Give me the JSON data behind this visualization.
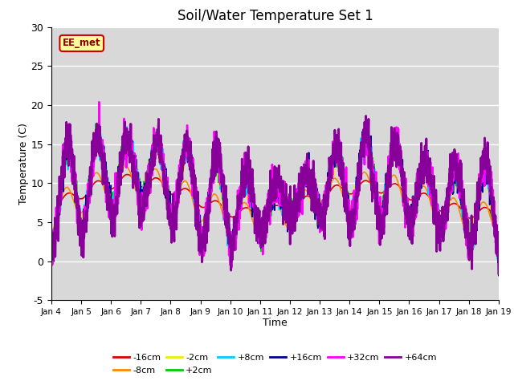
{
  "title": "Soil/Water Temperature Set 1",
  "xlabel": "Time",
  "ylabel": "Temperature (C)",
  "ylim": [
    -5,
    30
  ],
  "annotation_text": "EE_met",
  "plot_bg_color": "#d8d8d8",
  "fig_bg_color": "#ffffff",
  "series_labels": [
    "-16cm",
    "-8cm",
    "-2cm",
    "+2cm",
    "+8cm",
    "+16cm",
    "+32cm",
    "+64cm"
  ],
  "series_colors": [
    "#dd0000",
    "#ff8800",
    "#eeee00",
    "#00cc00",
    "#00ccff",
    "#000099",
    "#ff00ff",
    "#880099"
  ],
  "series_lw": [
    1.2,
    1.2,
    1.2,
    1.2,
    1.2,
    1.2,
    1.8,
    2.0
  ],
  "xtick_labels": [
    "Jan 4",
    "Jan 5",
    "Jan 6",
    "Jan 7",
    "Jan 8",
    "Jan 9",
    "Jan 10",
    "Jan 11",
    "Jan 12",
    "Jan 13",
    "Jan 14",
    "Jan 15",
    "Jan 16",
    "Jan 17",
    "Jan 18",
    "Jan 19"
  ],
  "ytick_vals": [
    -5,
    0,
    5,
    10,
    15,
    20,
    25,
    30
  ],
  "num_points": 2000,
  "time_days": 15,
  "legend_ncol_row1": 6,
  "legend_fontsize": 8
}
